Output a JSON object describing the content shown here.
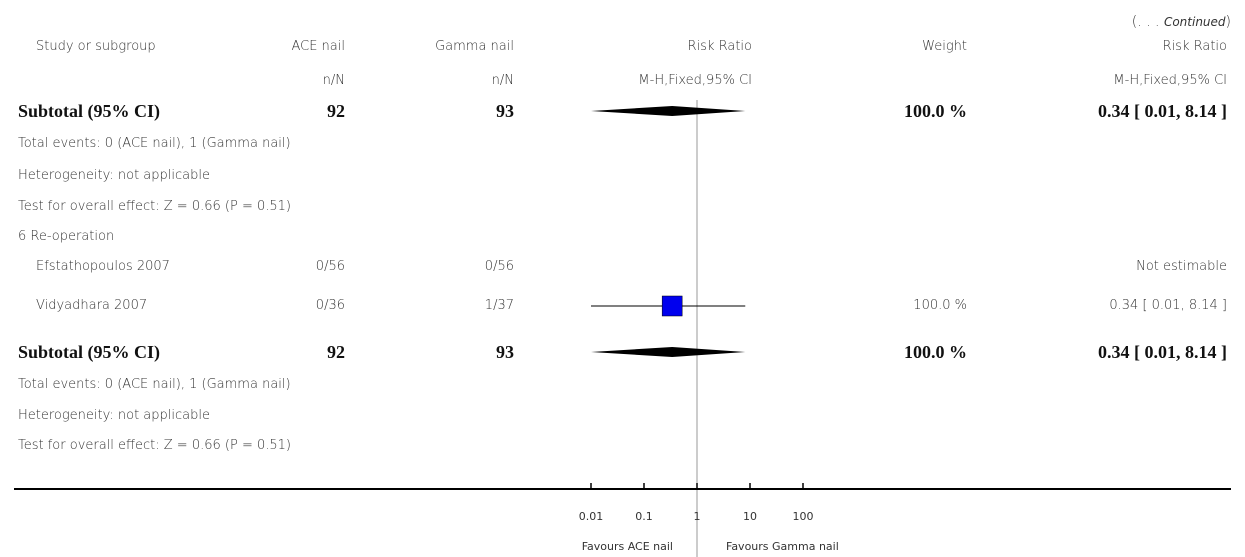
{
  "continued": {
    "open": "(. . . ",
    "italic": "Continued",
    "close": ")"
  },
  "header": {
    "study": "Study or subgroup",
    "ace": "ACE nail",
    "gamma": "Gamma nail",
    "rr": "Risk Ratio",
    "weight": "Weight",
    "rr2": "Risk Ratio",
    "ace_sub": "n/N",
    "gamma_sub": "n/N",
    "rr_sub": "M-H,Fixed,95% CI",
    "rr2_sub": "M-H,Fixed,95% CI"
  },
  "rows": {
    "sub1": {
      "label": "Subtotal (95% CI)",
      "ace": "92",
      "gamma": "93",
      "weight": "100.0 %",
      "ci": "0.34 [ 0.01, 8.14 ]"
    },
    "sub1_events": "Total events: 0 (ACE nail), 1 (Gamma nail)",
    "sub1_het": "Heterogeneity: not applicable",
    "sub1_test": "Test for overall effect: Z = 0.66 (P = 0.51)",
    "group6": "6 Re-operation",
    "efst": {
      "study": "Efstathopoulos 2007",
      "ace": "0/56",
      "gamma": "0/56",
      "ci": "Not estimable"
    },
    "vidy": {
      "study": "Vidyadhara 2007",
      "ace": "0/36",
      "gamma": "1/37",
      "weight": "100.0 %",
      "ci": "0.34 [ 0.01, 8.14 ]"
    },
    "sub2": {
      "label": "Subtotal (95% CI)",
      "ace": "92",
      "gamma": "93",
      "weight": "100.0 %",
      "ci": "0.34 [ 0.01, 8.14 ]"
    },
    "sub2_events": "Total events: 0 (ACE nail), 1 (Gamma nail)",
    "sub2_het": "Heterogeneity: not applicable",
    "sub2_test": "Test for overall effect: Z = 0.66 (P = 0.51)"
  },
  "axis": {
    "ticks": [
      "0.01",
      "0.1",
      "1",
      "10",
      "100"
    ],
    "favours_left": "Favours ACE nail",
    "favours_right": "Favours Gamma nail"
  },
  "colors": {
    "study_marker": "#0000ee",
    "diamond": "#000000",
    "line": "#000000"
  },
  "chart_data": {
    "type": "forest",
    "scale": "log",
    "xlim": [
      0.01,
      100
    ],
    "ticks": [
      0.01,
      0.1,
      1,
      10,
      100
    ],
    "studies": [
      {
        "name": "Efstathopoulos 2007",
        "estimate": null,
        "lower": null,
        "upper": null
      },
      {
        "name": "Vidyadhara 2007",
        "estimate": 0.34,
        "lower": 0.01,
        "upper": 8.14,
        "weight": 100.0
      }
    ],
    "subtotals": [
      {
        "estimate": 0.34,
        "lower": 0.01,
        "upper": 8.14
      },
      {
        "estimate": 0.34,
        "lower": 0.01,
        "upper": 8.14
      }
    ]
  }
}
